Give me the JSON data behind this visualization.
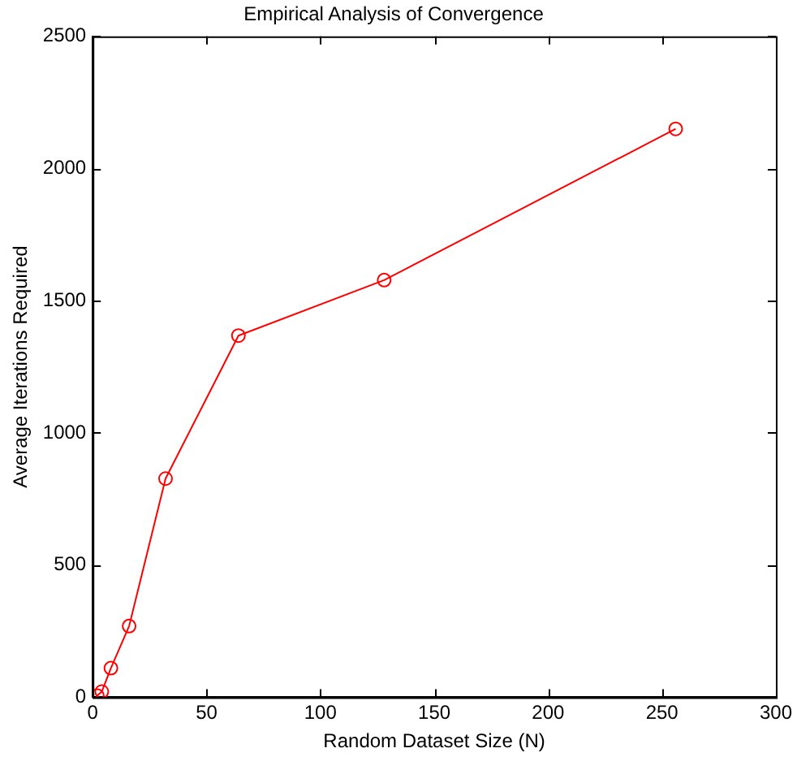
{
  "chart_data": {
    "type": "line",
    "title": "Empirical Analysis of Convergence",
    "xlabel": "Random Dataset Size (N)",
    "ylabel": "Average Iterations Required",
    "x": [
      2,
      4,
      8,
      16,
      32,
      64,
      128,
      256
    ],
    "series": [
      {
        "color": "#ff0000",
        "values": [
          6,
          21,
          110,
          269,
          827,
          1368,
          1578,
          2150
        ]
      }
    ],
    "xlim": [
      0,
      300
    ],
    "xticks": [
      0,
      50,
      100,
      150,
      200,
      250,
      300
    ],
    "ylim": [
      0,
      2500
    ],
    "yticks": [
      0,
      500,
      1000,
      1500,
      2000,
      2500
    ],
    "grid": false,
    "legend": false,
    "marker": "circle",
    "line_style": "solid"
  }
}
